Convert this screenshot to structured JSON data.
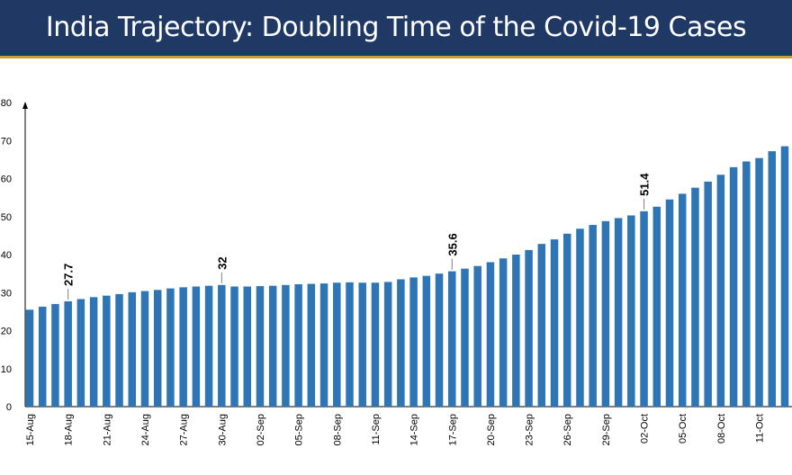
{
  "header": {
    "title": "India Trajectory: Doubling Time of the Covid-19 Cases"
  },
  "colors": {
    "title_bg": "#1f3864",
    "accent_line": "#c9a227",
    "bar": "#2e75b6"
  },
  "chart_data": {
    "type": "bar",
    "title": "India Trajectory: Doubling Time of the Covid-19 Cases",
    "xlabel": "",
    "ylabel": "",
    "ylim": [
      0,
      80
    ],
    "yticks": [
      0,
      10,
      20,
      30,
      40,
      50,
      60,
      70,
      80
    ],
    "grid": false,
    "legend": "none",
    "categories": [
      "15-Aug",
      "16-Aug",
      "17-Aug",
      "18-Aug",
      "19-Aug",
      "20-Aug",
      "21-Aug",
      "22-Aug",
      "23-Aug",
      "24-Aug",
      "25-Aug",
      "26-Aug",
      "27-Aug",
      "28-Aug",
      "29-Aug",
      "30-Aug",
      "31-Aug",
      "01-Sep",
      "02-Sep",
      "03-Sep",
      "04-Sep",
      "05-Sep",
      "06-Sep",
      "07-Sep",
      "08-Sep",
      "09-Sep",
      "10-Sep",
      "11-Sep",
      "12-Sep",
      "13-Sep",
      "14-Sep",
      "15-Sep",
      "16-Sep",
      "17-Sep",
      "18-Sep",
      "19-Sep",
      "20-Sep",
      "21-Sep",
      "22-Sep",
      "23-Sep",
      "24-Sep",
      "25-Sep",
      "26-Sep",
      "27-Sep",
      "28-Sep",
      "29-Sep",
      "30-Sep",
      "01-Oct",
      "02-Oct",
      "03-Oct",
      "04-Oct",
      "05-Oct",
      "06-Oct",
      "07-Oct",
      "08-Oct",
      "09-Oct",
      "10-Oct",
      "11-Oct",
      "12-Oct",
      "13-Oct"
    ],
    "xtick_labels": [
      "15-Aug",
      "18-Aug",
      "21-Aug",
      "24-Aug",
      "27-Aug",
      "30-Aug",
      "02-Sep",
      "05-Sep",
      "08-Sep",
      "11-Sep",
      "14-Sep",
      "17-Sep",
      "20-Sep",
      "23-Sep",
      "26-Sep",
      "29-Sep",
      "02-Oct",
      "05-Oct",
      "08-Oct",
      "11-Oct"
    ],
    "values": [
      25.5,
      26.3,
      27.0,
      27.7,
      28.3,
      28.8,
      29.2,
      29.6,
      30.1,
      30.4,
      30.7,
      31.1,
      31.4,
      31.6,
      31.8,
      32.0,
      31.6,
      31.6,
      31.7,
      31.8,
      32.0,
      32.2,
      32.3,
      32.4,
      32.6,
      32.7,
      32.6,
      32.6,
      32.8,
      33.5,
      34.0,
      34.4,
      35.0,
      35.6,
      36.3,
      37.0,
      38.0,
      39.0,
      40.0,
      41.2,
      42.8,
      44.0,
      45.5,
      46.8,
      47.8,
      48.8,
      49.6,
      50.3,
      51.4,
      52.6,
      54.5,
      56.0,
      57.6,
      59.2,
      61.0,
      63.0,
      64.5,
      65.4,
      67.2,
      68.5
    ],
    "data_labels": [
      {
        "category": "18-Aug",
        "text": "27.7"
      },
      {
        "category": "30-Aug",
        "text": "32"
      },
      {
        "category": "17-Sep",
        "text": "35.6"
      },
      {
        "category": "02-Oct",
        "text": "51.4"
      }
    ]
  }
}
